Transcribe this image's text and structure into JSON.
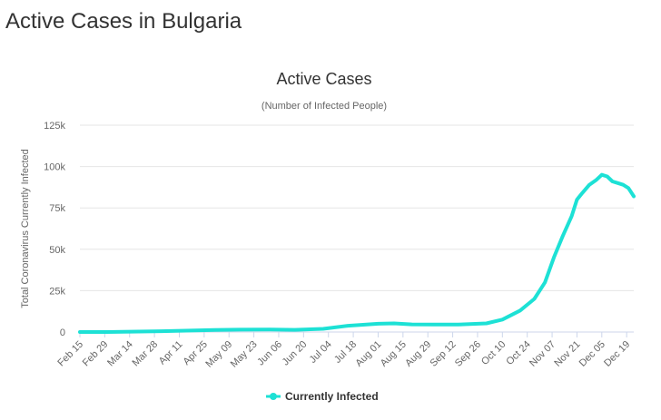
{
  "page": {
    "heading": "Active Cases in Bulgaria"
  },
  "colors": {
    "series": "#1de1d5",
    "grid": "#e6e6e6",
    "axis": "#ccd6eb"
  },
  "chart_data": {
    "type": "line",
    "title": "Active Cases",
    "subtitle": "(Number of Infected People)",
    "ylabel": "Total Coronavirus Currently Infected",
    "xlabel": "",
    "ylim": [
      0,
      125000
    ],
    "yticks": [
      0,
      25000,
      50000,
      75000,
      100000,
      125000
    ],
    "ytick_labels": [
      "0",
      "25k",
      "50k",
      "75k",
      "100k",
      "125k"
    ],
    "x_start": "Feb 15",
    "x_end": "Dec 23",
    "xtick_labels": [
      "Feb 15",
      "Feb 29",
      "Mar 14",
      "Mar 28",
      "Apr 11",
      "Apr 25",
      "May 09",
      "May 23",
      "Jun 06",
      "Jun 20",
      "Jul 04",
      "Jul 18",
      "Aug 01",
      "Aug 15",
      "Aug 29",
      "Sep 12",
      "Sep 26",
      "Oct 10",
      "Oct 24",
      "Nov 07",
      "Nov 21",
      "Dec 05",
      "Dec 19"
    ],
    "grid": true,
    "legend": "bottom-center",
    "series": [
      {
        "name": "Currently Infected",
        "x": [
          "Feb 15",
          "Mar 01",
          "Mar 15",
          "Apr 01",
          "Apr 15",
          "May 01",
          "May 15",
          "Jun 01",
          "Jun 15",
          "Jul 01",
          "Jul 15",
          "Aug 01",
          "Aug 10",
          "Aug 20",
          "Sep 01",
          "Sep 15",
          "Oct 01",
          "Oct 10",
          "Oct 20",
          "Oct 28",
          "Nov 03",
          "Nov 08",
          "Nov 13",
          "Nov 18",
          "Nov 21",
          "Nov 24",
          "Nov 28",
          "Dec 02",
          "Dec 05",
          "Dec 08",
          "Dec 11",
          "Dec 14",
          "Dec 17",
          "Dec 20",
          "Dec 23"
        ],
        "y": [
          0,
          0,
          200,
          500,
          800,
          1200,
          1400,
          1500,
          1300,
          1900,
          3800,
          5000,
          5200,
          4600,
          4500,
          4500,
          5200,
          7500,
          13000,
          20000,
          30000,
          45000,
          58000,
          70000,
          80000,
          84000,
          89000,
          92000,
          95000,
          94000,
          91000,
          90000,
          89000,
          87000,
          82000
        ]
      }
    ]
  }
}
